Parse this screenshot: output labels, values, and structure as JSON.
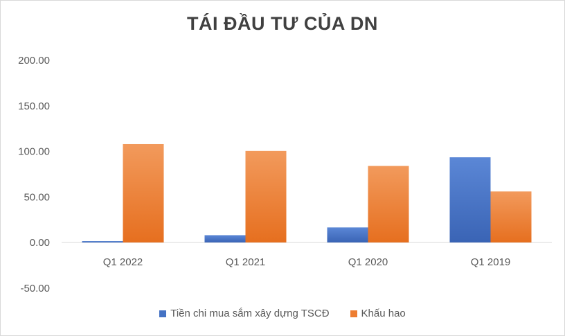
{
  "chart_data": {
    "type": "bar",
    "title": "TÁI ĐẦU TƯ CỦA DN",
    "xlabel": "",
    "ylabel": "",
    "categories": [
      "Q1 2022",
      "Q1 2021",
      "Q1 2020",
      "Q1 2019"
    ],
    "series": [
      {
        "name": "Tiền chi mua sắm xây dựng TSCĐ",
        "values": [
          1.5,
          8.0,
          16.5,
          93.5
        ],
        "color": "#4472c4"
      },
      {
        "name": "Khấu hao",
        "values": [
          108.0,
          100.5,
          84.0,
          56.0
        ],
        "color": "#ed7d31"
      }
    ],
    "ylim": [
      -50,
      200
    ],
    "yticks": [
      "200.00",
      "150.00",
      "100.00",
      "50.00",
      "0.00",
      "-50.00"
    ],
    "ytick_values": [
      200,
      150,
      100,
      50,
      0,
      -50
    ],
    "grid": false,
    "legend": "bottom"
  }
}
